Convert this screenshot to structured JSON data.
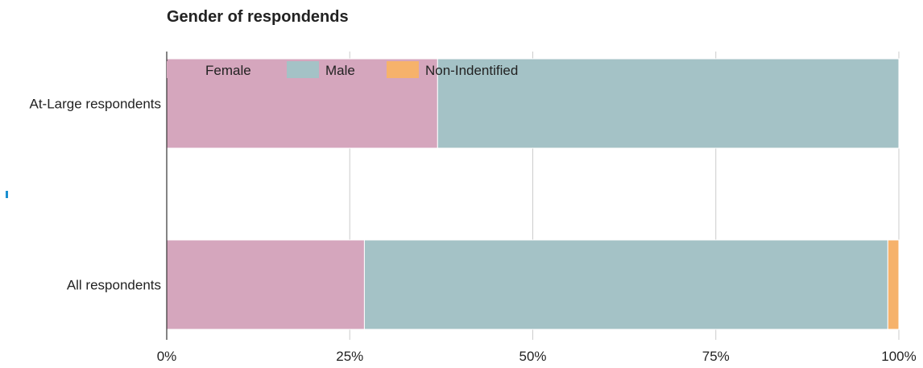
{
  "chart_data": {
    "type": "bar",
    "orientation": "horizontal",
    "stacked": true,
    "title": "Gender of respondends",
    "categories": [
      "At-Large respondents",
      "All respondents"
    ],
    "series": [
      {
        "name": "Female",
        "values": [
          37,
          27
        ],
        "color": "#d5a6bd"
      },
      {
        "name": "Male",
        "values": [
          63,
          71.5
        ],
        "color": "#a4c2c6"
      },
      {
        "name": "Non-Indentified",
        "values": [
          0,
          1.5
        ],
        "color": "#f6b26b"
      }
    ],
    "xlim": [
      0,
      100
    ],
    "ticks": [
      {
        "value": 0,
        "label": "0%"
      },
      {
        "value": 25,
        "label": "25%"
      },
      {
        "value": 50,
        "label": "50%"
      },
      {
        "value": 75,
        "label": "75%"
      },
      {
        "value": 100,
        "label": "100%"
      }
    ],
    "grid": true,
    "legend_position": "top-left"
  }
}
